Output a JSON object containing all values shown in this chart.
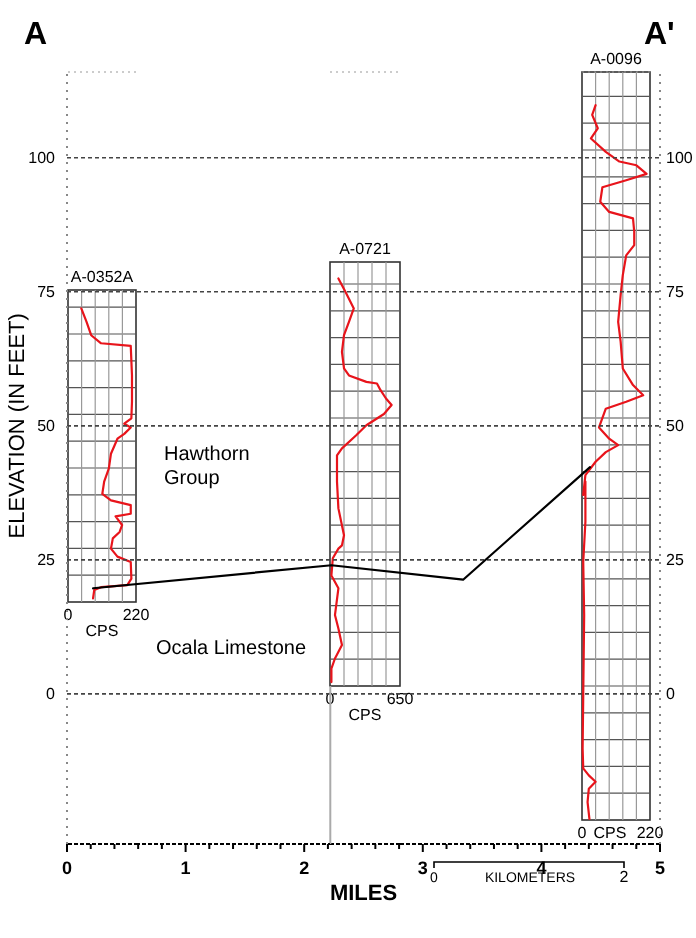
{
  "chart_data": [
    {
      "type": "line",
      "xlabel": "MILES",
      "ylabel": "ELEVATION (IN FEET)",
      "xlim": [
        0,
        5
      ],
      "ylim": [
        -28,
        116
      ],
      "y2lim": [
        -28,
        116
      ],
      "xticks": [
        0,
        {
          "value": 0.2,
          "label": null
        },
        {
          "value": 0.4,
          "label": null
        },
        {
          "value": 0.6,
          "label": null
        },
        {
          "value": 0.8,
          "label": null
        },
        1,
        {
          "value": 1.2,
          "label": null
        },
        {
          "value": 1.4,
          "label": null
        },
        {
          "value": 1.6,
          "label": null
        },
        {
          "value": 1.8,
          "label": null
        },
        2,
        {
          "value": 2.2,
          "label": null
        },
        {
          "value": 2.4,
          "label": null
        },
        {
          "value": 2.6,
          "label": null
        },
        {
          "value": 2.8,
          "label": null
        },
        3,
        {
          "value": 3.2,
          "label": null
        },
        {
          "value": 3.4,
          "label": null
        },
        {
          "value": 3.6,
          "label": null
        },
        {
          "value": 3.8,
          "label": null
        },
        4,
        {
          "value": 4.2,
          "label": null
        },
        {
          "value": 4.4,
          "label": null
        },
        {
          "value": 4.6,
          "label": null
        },
        {
          "value": 4.8,
          "label": null
        },
        5
      ],
      "yticks": [
        0,
        25,
        50,
        75,
        100
      ],
      "y2ticks": [
        0,
        25,
        50,
        75,
        100
      ],
      "grid": "y",
      "marker": "none",
      "line_style": "solid",
      "series": [
        {
          "color": "#000000",
          "x": [
            0.22,
            2.23,
            3.34,
            4.41
          ],
          "values": [
            19.7,
            24,
            21.3,
            42.3
          ]
        }
      ],
      "ref_lines": [
        {
          "axis": "x",
          "value": 2.22,
          "color": "#aaaaaa"
        }
      ],
      "annotations": [
        "A",
        "A'",
        "Hawthorn Group",
        "Ocala Limestone",
        "0",
        "KILOMETERS",
        "2"
      ]
    },
    {
      "type": "line",
      "title": "A-0352A",
      "xlabel": "CPS",
      "xlim": [
        0,
        220
      ],
      "ylim": [
        -28,
        116
      ],
      "tick_labels": "x",
      "marker": "none",
      "xticks": [
        0,
        220
      ],
      "series": [
        {
          "color": "#e8141b",
          "x": [
            43,
            60,
            75,
            107,
            203,
            207,
            207,
            205,
            182,
            203,
            182,
            160,
            139,
            132,
            117,
            111,
            139,
            203,
            203,
            154,
            175,
            167,
            145,
            139,
            160,
            203,
            205,
            192,
            107,
            85,
            81
          ],
          "values": [
            71.9,
            69.4,
            66.9,
            65.4,
            64.9,
            59.4,
            54.5,
            51.4,
            50.4,
            49.7,
            48.5,
            47.6,
            44.8,
            42.0,
            39.6,
            37.3,
            36.1,
            35.2,
            33.6,
            33.1,
            31.5,
            30.2,
            29.0,
            27.1,
            25.6,
            24.6,
            21.5,
            20.3,
            19.9,
            19.4,
            17.8
          ]
        }
      ]
    },
    {
      "type": "line",
      "title": "A-0721",
      "xlabel": "CPS",
      "xlim": [
        0,
        650
      ],
      "ylim": [
        -28,
        116
      ],
      "tick_labels": "x",
      "marker": "none",
      "xticks": [
        0,
        650
      ],
      "series": [
        {
          "color": "#e8141b",
          "x": [
            78,
            143,
            221,
            176,
            130,
            111,
            130,
            176,
            338,
            436,
            468,
            520,
            572,
            501,
            338,
            241,
            111,
            65,
            65,
            78,
            130,
            111,
            78,
            26,
            13,
            78,
            46,
            78,
            111,
            46,
            13,
            13
          ],
          "values": [
            77.5,
            75.0,
            71.9,
            69.4,
            66.9,
            63.8,
            60.7,
            59.4,
            58.2,
            57.9,
            56.7,
            55.1,
            53.9,
            52.2,
            50.1,
            48.2,
            45.8,
            44.5,
            39.6,
            34.6,
            29.6,
            27.7,
            27.1,
            25.3,
            22.1,
            19.7,
            14.7,
            12.2,
            9.1,
            6.6,
            4.7,
            2.2
          ]
        }
      ]
    },
    {
      "type": "line",
      "title": "A-0096",
      "xlabel": "CPS",
      "xlim": [
        0,
        220
      ],
      "ylim": [
        -28,
        116
      ],
      "tick_labels": "x",
      "marker": "none",
      "xticks": [
        0,
        220
      ],
      "series": [
        {
          "color": "#e8141b",
          "x": [
            44,
            33,
            51,
            29,
            77,
            121,
            176,
            209,
            143,
            66,
            59,
            88,
            165,
            169,
            169,
            143,
            132,
            125,
            121,
            117,
            125,
            132,
            165,
            198,
            143,
            77,
            55,
            88,
            117,
            77,
            44,
            11,
            4,
            11,
            11,
            4,
            7,
            4,
            2,
            4,
            22,
            44,
            22,
            18,
            24
          ],
          "values": [
            109.8,
            108.0,
            105.5,
            103.6,
            101.1,
            99.3,
            98.6,
            97.0,
            95.8,
            94.5,
            91.8,
            89.9,
            88.7,
            86.2,
            83.7,
            81.8,
            78.1,
            74.4,
            71.9,
            69.4,
            65.7,
            60.7,
            57.6,
            55.7,
            54.5,
            53.2,
            49.7,
            47.6,
            46.4,
            45.1,
            43.3,
            40.8,
            37.1,
            39.6,
            32.1,
            24.6,
            14.7,
            -0.2,
            -10.2,
            -13.9,
            -15.2,
            -16.4,
            -17.7,
            -20.2,
            -23.3
          ]
        }
      ]
    }
  ]
}
